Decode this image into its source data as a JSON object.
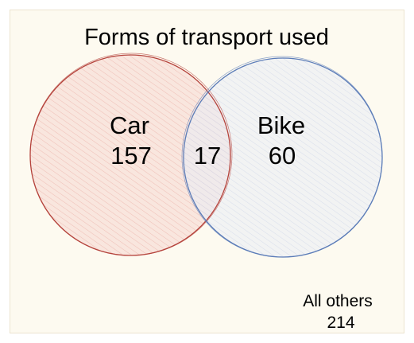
{
  "title": "Forms of transport used",
  "sets": [
    {
      "id": "car",
      "label": "Car",
      "only": "157",
      "stroke": "#b5433c",
      "fill": "#f6d6d0",
      "hatch": "#e8a79f"
    },
    {
      "id": "bike",
      "label": "Bike",
      "only": "60",
      "stroke": "#5b7cb8",
      "fill": "#e9ecf5",
      "hatch": "#c9d1e6"
    }
  ],
  "intersection": "17",
  "outside": {
    "label": "All others",
    "value": "214"
  },
  "colors": {
    "background": "#fdfaf0",
    "border": "#ece4cf"
  }
}
